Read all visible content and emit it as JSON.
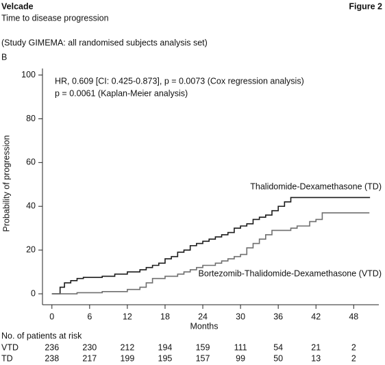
{
  "header": {
    "product": "Velcade",
    "figure": "Figure 2",
    "subtitle": "Time to disease progression",
    "study": "(Study GIMEMA: all randomised subjects analysis set)",
    "panel": "B"
  },
  "chart_data": {
    "type": "step",
    "x_label": "Months",
    "y_label": "Probability of progression",
    "annotations": [
      "HR, 0.609 [CI: 0.425-0.873], p = 0.0073 (Cox regression analysis)",
      "p = 0.0061 (Kaplan-Meier analysis)"
    ],
    "xlim": [
      -1.5,
      52
    ],
    "xticks": [
      0,
      6,
      12,
      18,
      24,
      30,
      36,
      42,
      48
    ],
    "ylim": [
      -5,
      103
    ],
    "yticks": [
      0,
      20,
      40,
      60,
      80,
      100
    ],
    "series": [
      {
        "name": "Thalidomide-Dexamethasone (TD)",
        "color": "#1a1a1a",
        "x": [
          0,
          1.3,
          2,
          3,
          4,
          5,
          8,
          10,
          12,
          14,
          15,
          16,
          17,
          18,
          19,
          20,
          21,
          22,
          23,
          24,
          25,
          26,
          27,
          28,
          29,
          30,
          31,
          32,
          33,
          34,
          35,
          36,
          37,
          38,
          50.6
        ],
        "values": [
          0,
          3,
          5,
          6,
          7,
          7.5,
          8,
          9,
          10,
          11,
          12,
          13,
          14,
          16,
          17,
          19,
          20,
          22,
          23,
          24,
          25,
          26,
          27,
          28,
          30,
          31,
          32,
          34,
          35,
          36,
          38,
          40,
          42,
          44,
          44
        ]
      },
      {
        "name": "Bortezomib-Thalidomide-Dexamethasone (VTD)",
        "color": "#6e6e6e",
        "x": [
          0,
          4,
          8,
          12,
          14,
          15,
          16,
          18,
          20,
          21,
          22,
          23,
          24,
          26,
          27,
          28,
          29,
          30,
          31,
          32,
          33,
          34,
          35,
          38,
          39,
          41,
          42,
          43,
          50.5
        ],
        "values": [
          0,
          0.5,
          1,
          2,
          3,
          5,
          7,
          8,
          9,
          10,
          11,
          12,
          13,
          14,
          15,
          16,
          17,
          18,
          21,
          23,
          25,
          27,
          29,
          30,
          31,
          33,
          34,
          37,
          37
        ]
      }
    ],
    "risk_table": {
      "title": "No. of patients at risk",
      "rows": [
        {
          "label": "VTD",
          "values": [
            236,
            230,
            212,
            194,
            159,
            111,
            54,
            21,
            2
          ]
        },
        {
          "label": "TD",
          "values": [
            238,
            217,
            199,
            195,
            157,
            99,
            50,
            13,
            2
          ]
        }
      ]
    }
  }
}
